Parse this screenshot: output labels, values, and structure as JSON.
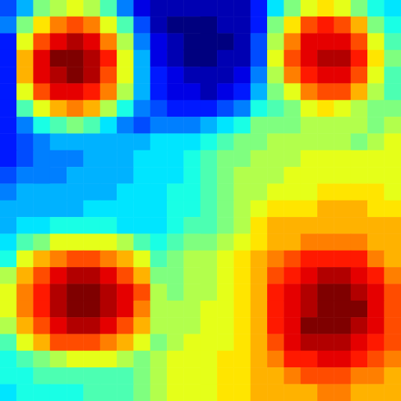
{
  "chart_data": {
    "type": "heatmap",
    "color": "jet",
    "tick_labels": false,
    "color_range": [
      0,
      20
    ],
    "cells": [
      [
        4,
        6,
        10,
        11,
        12,
        11,
        9,
        5,
        2,
        1,
        1,
        1,
        1,
        1,
        1,
        3,
        7,
        10,
        12,
        13,
        12,
        10,
        8,
        7
      ],
      [
        5,
        10,
        13,
        15,
        16,
        15,
        12,
        9,
        4,
        1,
        0,
        0,
        0,
        1,
        1,
        3,
        10,
        13,
        16,
        17,
        16,
        14,
        10,
        8
      ],
      [
        3,
        12,
        16,
        18,
        19,
        18,
        15,
        11,
        5,
        2,
        1,
        0,
        0,
        0,
        1,
        4,
        11,
        15,
        18,
        18,
        18,
        16,
        12,
        9
      ],
      [
        3,
        14,
        18,
        20,
        20,
        19,
        17,
        12,
        6,
        2,
        1,
        0,
        0,
        1,
        1,
        4,
        12,
        16,
        18,
        19,
        19,
        17,
        13,
        10
      ],
      [
        3,
        14,
        18,
        19,
        20,
        19,
        16,
        12,
        6,
        3,
        2,
        1,
        1,
        1,
        2,
        5,
        11,
        15,
        17,
        18,
        18,
        16,
        12,
        9
      ],
      [
        3,
        12,
        16,
        18,
        18,
        17,
        15,
        11,
        6,
        3,
        2,
        2,
        1,
        2,
        3,
        6,
        10,
        12,
        15,
        16,
        16,
        14,
        11,
        9
      ],
      [
        3,
        9,
        12,
        14,
        15,
        14,
        11,
        8,
        5,
        4,
        3,
        3,
        3,
        4,
        5,
        8,
        9,
        10,
        12,
        13,
        12,
        11,
        10,
        10
      ],
      [
        3,
        5,
        8,
        9,
        10,
        9,
        7,
        5,
        4,
        5,
        5,
        5,
        6,
        7,
        8,
        10,
        10,
        10,
        11,
        11,
        11,
        11,
        10,
        11
      ],
      [
        3,
        4,
        5,
        6,
        6,
        6,
        6,
        6,
        6,
        7,
        7,
        7,
        8,
        9,
        10,
        10,
        11,
        11,
        11,
        11,
        11,
        10,
        11,
        12
      ],
      [
        3,
        4,
        5,
        5,
        5,
        6,
        6,
        6,
        7,
        7,
        7,
        8,
        9,
        10,
        10,
        11,
        11,
        11,
        12,
        12,
        12,
        12,
        12,
        12
      ],
      [
        4,
        5,
        5,
        5,
        6,
        6,
        6,
        6,
        7,
        7,
        7,
        8,
        9,
        10,
        11,
        11,
        11,
        12,
        12,
        12,
        12,
        12,
        12,
        12
      ],
      [
        5,
        6,
        6,
        6,
        6,
        6,
        6,
        7,
        7,
        7,
        8,
        8,
        9,
        10,
        11,
        11,
        12,
        12,
        12,
        13,
        13,
        13,
        13,
        12
      ],
      [
        6,
        6,
        6,
        6,
        6,
        7,
        7,
        7,
        7,
        7,
        8,
        8,
        9,
        10,
        11,
        12,
        13,
        13,
        13,
        14,
        14,
        14,
        13,
        13
      ],
      [
        6,
        7,
        7,
        8,
        8,
        8,
        8,
        7,
        7,
        7,
        8,
        9,
        9,
        10,
        11,
        13,
        14,
        14,
        14,
        14,
        14,
        14,
        14,
        14
      ],
      [
        7,
        9,
        10,
        12,
        12,
        12,
        12,
        11,
        9,
        8,
        9,
        10,
        10,
        11,
        12,
        13,
        14,
        14,
        15,
        15,
        15,
        15,
        14,
        14
      ],
      [
        8,
        12,
        14,
        15,
        16,
        16,
        15,
        14,
        12,
        9,
        10,
        11,
        11,
        12,
        13,
        14,
        15,
        16,
        17,
        17,
        17,
        17,
        15,
        14
      ],
      [
        11,
        14,
        16,
        18,
        19,
        19,
        18,
        16,
        14,
        10,
        10,
        11,
        11,
        12,
        13,
        14,
        16,
        17,
        18,
        19,
        19,
        18,
        17,
        15
      ],
      [
        12,
        15,
        17,
        19,
        20,
        20,
        19,
        18,
        16,
        11,
        10,
        11,
        11,
        12,
        13,
        14,
        17,
        18,
        19,
        20,
        20,
        19,
        18,
        16
      ],
      [
        12,
        15,
        17,
        19,
        20,
        20,
        19,
        18,
        15,
        11,
        11,
        11,
        12,
        12,
        13,
        14,
        17,
        18,
        19,
        20,
        20,
        20,
        18,
        16
      ],
      [
        11,
        14,
        16,
        18,
        19,
        19,
        18,
        16,
        14,
        11,
        11,
        11,
        12,
        12,
        13,
        14,
        17,
        18,
        20,
        20,
        20,
        19,
        18,
        16
      ],
      [
        9,
        12,
        14,
        16,
        16,
        16,
        15,
        14,
        12,
        10,
        11,
        12,
        12,
        12,
        13,
        14,
        16,
        18,
        19,
        19,
        19,
        18,
        17,
        16
      ],
      [
        8,
        9,
        10,
        11,
        12,
        12,
        12,
        11,
        10,
        11,
        12,
        12,
        12,
        13,
        13,
        14,
        15,
        17,
        17,
        18,
        18,
        17,
        16,
        15
      ],
      [
        8,
        8,
        9,
        9,
        9,
        9,
        9,
        9,
        10,
        11,
        12,
        12,
        12,
        13,
        13,
        14,
        14,
        15,
        16,
        16,
        16,
        15,
        15,
        14
      ],
      [
        7,
        8,
        8,
        8,
        8,
        9,
        9,
        9,
        10,
        11,
        12,
        12,
        12,
        13,
        13,
        14,
        14,
        14,
        14,
        15,
        15,
        14,
        14,
        14
      ]
    ]
  }
}
